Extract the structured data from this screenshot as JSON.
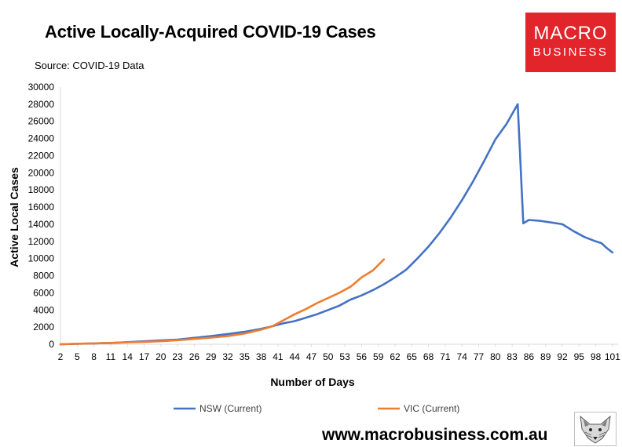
{
  "header": {
    "title": "Active Locally-Acquired COVID-19 Cases",
    "source": "Source: COVID-19 Data",
    "logo_line1": "MACRO",
    "logo_line2": "BUSINESS",
    "footer_url": "www.macrobusiness.com.au",
    "logo_color": "#e2242b"
  },
  "chart_data": {
    "type": "line",
    "title": "Active Locally-Acquired COVID-19 Cases",
    "xlabel": "Number of Days",
    "ylabel": "Active Local Cases",
    "ylim": [
      0,
      30000
    ],
    "xlim": [
      2,
      102
    ],
    "yticks": [
      0,
      2000,
      4000,
      6000,
      8000,
      10000,
      12000,
      14000,
      16000,
      18000,
      20000,
      22000,
      24000,
      26000,
      28000,
      30000
    ],
    "xticks": [
      2,
      5,
      8,
      11,
      14,
      17,
      20,
      23,
      26,
      29,
      32,
      35,
      38,
      41,
      44,
      47,
      50,
      53,
      56,
      59,
      62,
      65,
      68,
      71,
      74,
      77,
      80,
      83,
      86,
      89,
      92,
      95,
      98,
      101
    ],
    "grid": false,
    "legend_position": "bottom",
    "series": [
      {
        "name": "NSW (Current)",
        "color": "#4472c4",
        "x": [
          2,
          5,
          8,
          11,
          14,
          17,
          20,
          23,
          26,
          29,
          32,
          35,
          38,
          40,
          42,
          44,
          46,
          48,
          50,
          52,
          54,
          56,
          58,
          60,
          62,
          64,
          66,
          68,
          70,
          72,
          74,
          76,
          78,
          80,
          82,
          84,
          85,
          86,
          88,
          90,
          92,
          94,
          96,
          98,
          99,
          100,
          101
        ],
        "y": [
          0,
          50,
          100,
          150,
          250,
          350,
          450,
          550,
          750,
          950,
          1200,
          1450,
          1800,
          2100,
          2450,
          2700,
          3100,
          3500,
          4000,
          4500,
          5200,
          5700,
          6300,
          7000,
          7800,
          8700,
          10000,
          11400,
          13000,
          14800,
          16800,
          19000,
          21400,
          23900,
          25700,
          28000,
          14100,
          14500,
          14400,
          14200,
          14000,
          13200,
          12500,
          12000,
          11800,
          11200,
          10700
        ]
      },
      {
        "name": "VIC (Current)",
        "color": "#ed7d31",
        "x": [
          2,
          5,
          8,
          11,
          14,
          17,
          20,
          23,
          26,
          29,
          32,
          35,
          38,
          40,
          42,
          44,
          46,
          48,
          50,
          52,
          54,
          56,
          58,
          60
        ],
        "y": [
          0,
          60,
          100,
          160,
          230,
          280,
          360,
          480,
          620,
          780,
          950,
          1250,
          1700,
          2100,
          2800,
          3500,
          4100,
          4800,
          5400,
          6000,
          6700,
          7800,
          8600,
          9900
        ]
      }
    ]
  }
}
